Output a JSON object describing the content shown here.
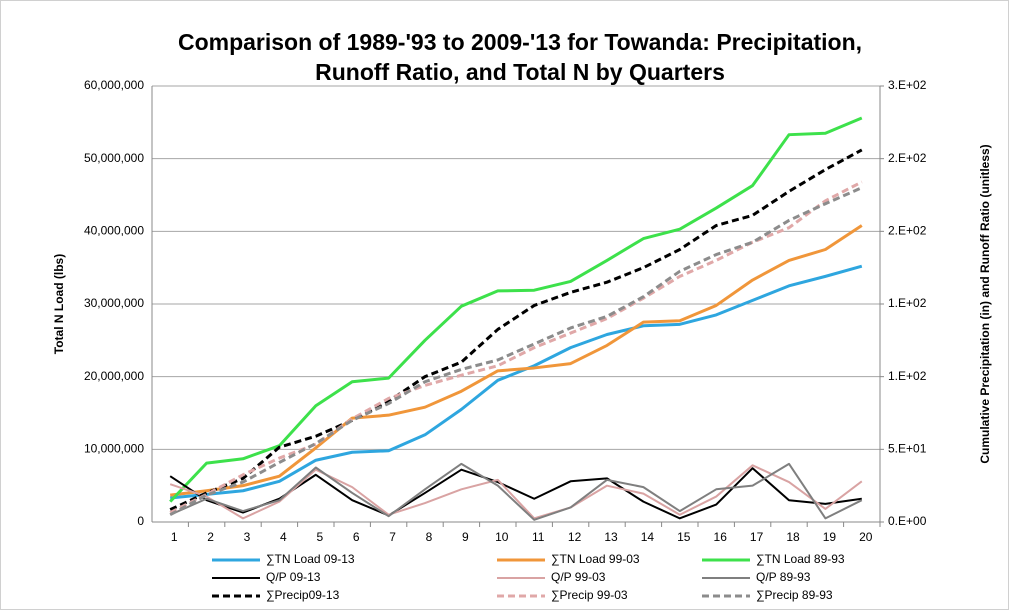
{
  "chart_data": {
    "type": "line",
    "title": [
      "Comparison of 1989-'93 to 2009-'13 for Towanda: Precipitation,",
      "Runoff Ratio, and Total N by Quarters"
    ],
    "y_label": "Total N Load (lbs)",
    "y2_label": "Cumulative Precipitation (in) and Runoff Ratio (unitless)",
    "categories": [
      "1",
      "2",
      "3",
      "4",
      "5",
      "6",
      "7",
      "8",
      "9",
      "10",
      "11",
      "12",
      "13",
      "14",
      "15",
      "16",
      "17",
      "18",
      "19",
      "20"
    ],
    "ylim": [
      0,
      60000000
    ],
    "yticks": [
      {
        "value": 0,
        "label": "0"
      },
      {
        "value": 10000000,
        "label": "10,000,000"
      },
      {
        "value": 20000000,
        "label": "20,000,000"
      },
      {
        "value": 30000000,
        "label": "30,000,000"
      },
      {
        "value": 40000000,
        "label": "40,000,000"
      },
      {
        "value": 50000000,
        "label": "50,000,000"
      },
      {
        "value": 60000000,
        "label": "60,000,000"
      }
    ],
    "y2lim": [
      0,
      300
    ],
    "y2ticks": [
      {
        "value": 0,
        "label": "0.E+00"
      },
      {
        "value": 50,
        "label": "5.E+01"
      },
      {
        "value": 100,
        "label": "1.E+02"
      },
      {
        "value": 150,
        "label": "1.E+02"
      },
      {
        "value": 200,
        "label": "2.E+02"
      },
      {
        "value": 250,
        "label": "2.E+02"
      },
      {
        "value": 300,
        "label": "3.E+02"
      }
    ],
    "grid": true,
    "legend": "bottom",
    "series": [
      {
        "name": "∑TN Load 09-13",
        "color": "#2ea6df",
        "width": 3,
        "dash": false,
        "values": [
          3300000,
          3800000,
          4300000,
          5600000,
          8500000,
          9600000,
          9800000,
          12000000,
          15500000,
          19500000,
          21500000,
          24000000,
          25800000,
          27000000,
          27200000,
          28500000,
          30500000,
          32500000,
          33800000,
          35200000
        ]
      },
      {
        "name": "∑TN Load 99-03",
        "color": "#f0963a",
        "width": 3,
        "dash": false,
        "values": [
          3700000,
          4300000,
          5000000,
          6300000,
          10200000,
          14300000,
          14700000,
          15800000,
          18000000,
          20800000,
          21200000,
          21800000,
          24300000,
          27500000,
          27700000,
          29800000,
          33300000,
          36000000,
          37500000,
          40800000
        ]
      },
      {
        "name": "∑TN Load 89-93",
        "color": "#3de14b",
        "width": 3,
        "dash": false,
        "values": [
          2800000,
          8100000,
          8700000,
          10500000,
          16000000,
          19300000,
          19800000,
          25000000,
          29700000,
          31800000,
          31900000,
          33100000,
          36000000,
          39000000,
          40300000,
          43200000,
          46300000,
          53300000,
          53500000,
          55600000
        ]
      },
      {
        "name": "Q/P 09-13",
        "color": "#000000",
        "width": 2,
        "dash": false,
        "axis": "y2",
        "values": [
          31.5,
          15,
          6.5,
          16,
          32.5,
          15,
          4.5,
          20,
          36,
          27.5,
          16,
          28,
          30,
          14,
          2.5,
          12,
          37,
          15,
          12.5,
          16
        ]
      },
      {
        "name": "Q/P 99-03",
        "color": "#d9a3a3",
        "width": 2,
        "dash": false,
        "axis": "y2",
        "values": [
          26,
          17.5,
          2.5,
          14,
          36,
          24,
          5,
          13,
          22.5,
          29,
          2.5,
          10,
          25,
          19.5,
          5,
          17.5,
          39,
          27.5,
          9,
          28
        ]
      },
      {
        "name": "Q/P 89-93",
        "color": "#7f7f7f",
        "width": 2,
        "dash": false,
        "axis": "y2",
        "values": [
          5,
          16,
          7.5,
          15,
          37.5,
          20,
          4,
          22.5,
          40,
          25,
          1.5,
          10,
          29,
          24,
          7.5,
          22.5,
          25,
          40,
          2.5,
          15
        ]
      },
      {
        "name": "∑Precip09-13",
        "color": "#000000",
        "width": 3,
        "dash": true,
        "axis": "y2",
        "values": [
          8.5,
          20,
          30,
          51.5,
          59,
          70,
          83,
          100,
          110,
          132.5,
          149,
          158,
          165,
          175,
          187.5,
          204,
          211,
          227.5,
          242.5,
          256
        ]
      },
      {
        "name": "∑Precip 99-03",
        "color": "#e0a8a8",
        "width": 3,
        "dash": true,
        "axis": "y2",
        "values": [
          6.5,
          19,
          32.5,
          44,
          53.5,
          71,
          85,
          94,
          101,
          107.5,
          120,
          130,
          140,
          154,
          169,
          180,
          192.5,
          202.5,
          221,
          234
        ]
      },
      {
        "name": "∑Precip 89-93",
        "color": "#8c8c8c",
        "width": 3,
        "dash": true,
        "axis": "y2",
        "values": [
          5,
          18.5,
          27.5,
          41,
          54,
          70,
          81.5,
          96.5,
          105,
          111.5,
          122.5,
          133.5,
          141.5,
          155,
          172.5,
          184,
          192.5,
          207.5,
          219,
          230
        ]
      }
    ]
  }
}
